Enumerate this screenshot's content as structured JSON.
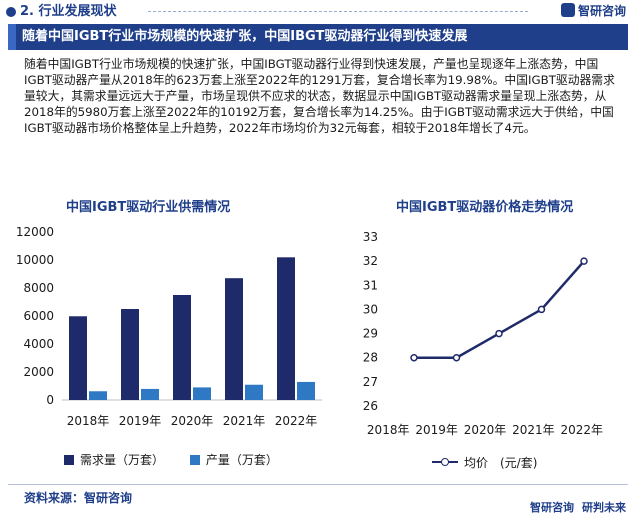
{
  "header": {
    "section_label": "2. 行业发展现状",
    "brand": "智研咨询",
    "banner_title": "随着中国IGBT行业市场规模的快速扩张，中国IBGT驱动器行业得到快速发展"
  },
  "body_text": "随着中国IGBT行业市场规模的快速扩张，中国IBGT驱动器行业得到快速发展，产量也呈现逐年上涨态势，中国IGBT驱动器产量从2018年的623万套上涨至2022年的1291万套，复合增长率为19.98%。中国IGBT驱动器需求量较大，其需求量远远大于产量，市场呈现供不应求的状态，数据显示中国IGBT驱动器需求量呈现上涨态势，从2018年的5980万套上涨至2022年的10192万套，复合增长率为14.25%。由于IGBT驱动需求远大于供给，中国IGBT驱动器市场价格整体呈上升趋势，2022年市场均价为32元每套，相较于2018年增长了4元。",
  "footer": {
    "source": "资料来源：智研咨询",
    "brand_left": "智研咨询",
    "brand_right": "研判未来"
  },
  "chart_data": [
    {
      "type": "bar",
      "title": "中国IGBT驱动行业供需情况",
      "categories": [
        "2018年",
        "2019年",
        "2020年",
        "2021年",
        "2022年"
      ],
      "series": [
        {
          "name": "需求量（万套）",
          "values": [
            5980,
            6500,
            7500,
            8700,
            10192
          ],
          "color": "#1f2a6b"
        },
        {
          "name": "产量（万套）",
          "values": [
            623,
            790,
            900,
            1090,
            1291
          ],
          "color": "#2f78c4"
        }
      ],
      "yticks": [
        "0",
        "2000",
        "4000",
        "6000",
        "8000",
        "10000",
        "12000"
      ],
      "ylim": [
        0,
        12000
      ],
      "grid": false,
      "legend_position": "bottom"
    },
    {
      "type": "line",
      "title": "中国IGBT驱动器价格走势情况",
      "categories": [
        "2018年",
        "2019年",
        "2020年",
        "2021年",
        "2022年"
      ],
      "series": [
        {
          "name": "均价　(元/套)",
          "values": [
            28,
            28,
            29,
            30,
            32
          ],
          "color": "#1f2a6b"
        }
      ],
      "yticks": [
        "26",
        "27",
        "28",
        "29",
        "30",
        "31",
        "32",
        "33"
      ],
      "ylim": [
        26,
        33
      ],
      "grid": false,
      "legend_position": "bottom"
    }
  ]
}
